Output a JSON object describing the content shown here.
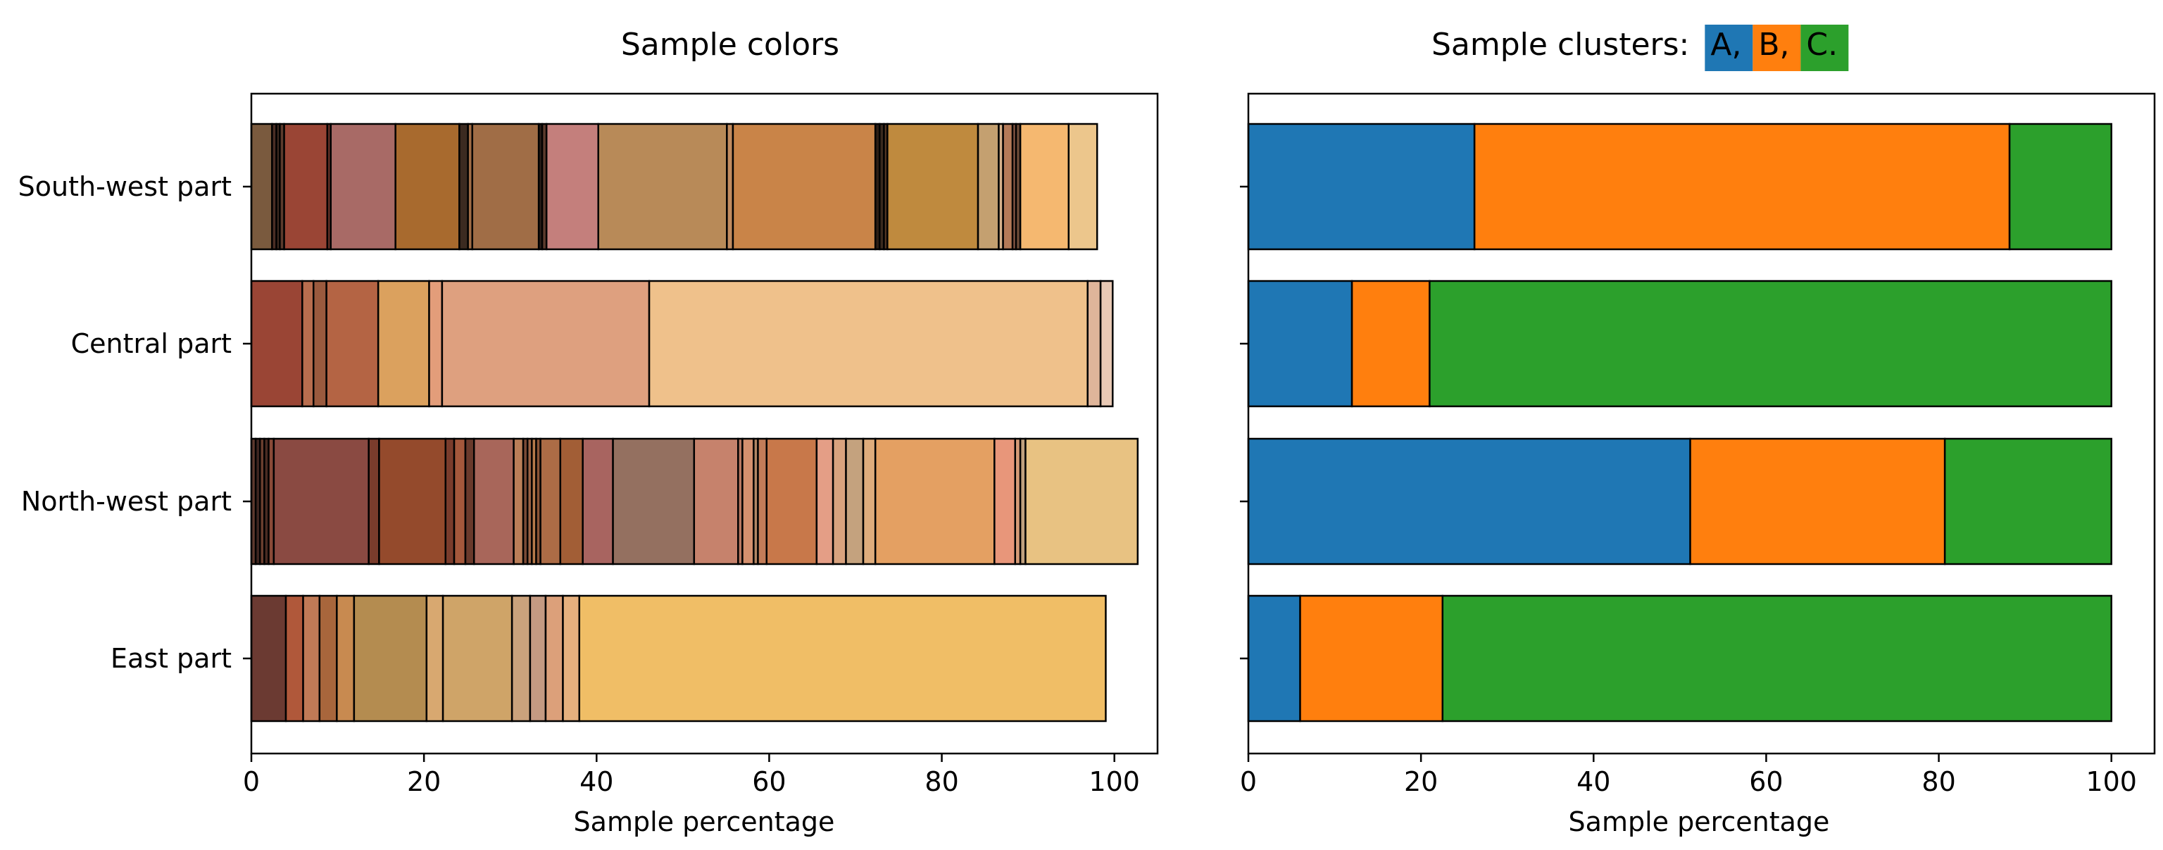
{
  "chart_data": [
    {
      "type": "bar",
      "orientation": "horizontal",
      "stacked": true,
      "title": "Sample colors",
      "xlabel": "Sample percentage",
      "ylabel": "",
      "xlim": [
        0,
        105
      ],
      "xticks": [
        0,
        20,
        40,
        60,
        80,
        100
      ],
      "categories": [
        "South-west part",
        "Central part",
        "North-west part",
        "East part"
      ],
      "segments": [
        {
          "category": "South-west part",
          "values": [
            2.4,
            0.5,
            0.4,
            0.5,
            5.0,
            0.4,
            7.5,
            7.4,
            1.0,
            0.5,
            7.7,
            0.4,
            0.5,
            6.0,
            14.9,
            0.7,
            16.5,
            0.5,
            0.5,
            0.4,
            10.5,
            2.4,
            0.5,
            1.1,
            0.4,
            0.5,
            5.6,
            3.3
          ],
          "colors": [
            "#7a5a3e",
            "#4a2d24",
            "#3d2a20",
            "#5c3b2d",
            "#9a4535",
            "#653228",
            "#a86a66",
            "#a86a2e",
            "#3b2a20",
            "#a06d46",
            "#a06d46",
            "#2a1d18",
            "#5c3b2d",
            "#c47f7c",
            "#b88a58",
            "#c18b5f",
            "#c98448",
            "#2c1e15",
            "#3a2a1e",
            "#523522",
            "#bf8a3e",
            "#c4a070",
            "#d6b08a",
            "#b47a58",
            "#8a5a46",
            "#6a4a36",
            "#f5b870",
            "#ecc68c"
          ]
        },
        {
          "category": "Central part",
          "values": [
            5.9,
            1.3,
            1.5,
            6.0,
            5.9,
            1.5,
            24.0,
            50.8,
            1.5,
            1.4
          ],
          "colors": [
            "#9a4535",
            "#b86d4e",
            "#9a5a3e",
            "#b46444",
            "#dba15e",
            "#e39d7a",
            "#dea07f",
            "#efc18b",
            "#dfb59a",
            "#e8c9b5"
          ]
        },
        {
          "category": "North-west part",
          "values": [
            0.5,
            0.5,
            0.5,
            0.5,
            0.6,
            11.0,
            1.2,
            7.7,
            1.0,
            1.3,
            1.0,
            4.6,
            1.1,
            0.5,
            0.5,
            0.5,
            0.5,
            2.3,
            2.6,
            3.5,
            9.4,
            5.1,
            0.5,
            1.3,
            0.5,
            1.0,
            5.8,
            1.9,
            1.5,
            2.0,
            1.4,
            13.8,
            2.4,
            0.6,
            0.6,
            13.0
          ],
          "colors": [
            "#5e3a2e",
            "#3e2620",
            "#6a3e2e",
            "#4a2c22",
            "#8a4a38",
            "#8a4a42",
            "#7a3c2c",
            "#944a2c",
            "#7a3c2c",
            "#a4583c",
            "#6a3a2c",
            "#a8665a",
            "#ba7e58",
            "#7a4a36",
            "#9a6244",
            "#b67a4a",
            "#8a5436",
            "#ac6c46",
            "#a25e36",
            "#a86460",
            "#947060",
            "#c6826c",
            "#b87a62",
            "#d4906e",
            "#b28664",
            "#c27c58",
            "#c8784a",
            "#e49e86",
            "#d8a27e",
            "#c4a27e",
            "#deac7c",
            "#e4a062",
            "#e8967a",
            "#d49a76",
            "#c0a07e",
            "#e8c282"
          ]
        },
        {
          "category": "East part",
          "values": [
            4.0,
            2.0,
            1.9,
            2.0,
            2.0,
            8.4,
            1.9,
            8.0,
            2.1,
            1.8,
            2.0,
            1.9,
            61.0
          ],
          "colors": [
            "#6b3a32",
            "#b0583a",
            "#c07a56",
            "#a8663c",
            "#c88a50",
            "#b48c50",
            "#d8a870",
            "#cfa468",
            "#caa27c",
            "#c49a82",
            "#dca07a",
            "#e6b07e",
            "#f0be66"
          ]
        }
      ]
    },
    {
      "type": "bar",
      "orientation": "horizontal",
      "stacked": true,
      "title": "Sample clusters: ",
      "legend": [
        {
          "label": "A,",
          "color": "#1f77b4"
        },
        {
          "label": "B,",
          "color": "#ff7f0e"
        },
        {
          "label": "C.",
          "color": "#2ca02c"
        }
      ],
      "xlabel": "Sample percentage",
      "ylabel": "",
      "xlim": [
        0,
        105
      ],
      "xticks": [
        0,
        20,
        40,
        60,
        80,
        100
      ],
      "categories": [
        "South-west part",
        "Central part",
        "North-west part",
        "East part"
      ],
      "series": [
        {
          "name": "A",
          "color": "#1f77b4",
          "values": [
            26.2,
            12.0,
            51.2,
            6.0
          ]
        },
        {
          "name": "B",
          "color": "#ff7f0e",
          "values": [
            62.0,
            9.0,
            29.5,
            16.5
          ]
        },
        {
          "name": "C",
          "color": "#2ca02c",
          "values": [
            11.8,
            79.0,
            19.3,
            77.5
          ]
        }
      ]
    }
  ]
}
